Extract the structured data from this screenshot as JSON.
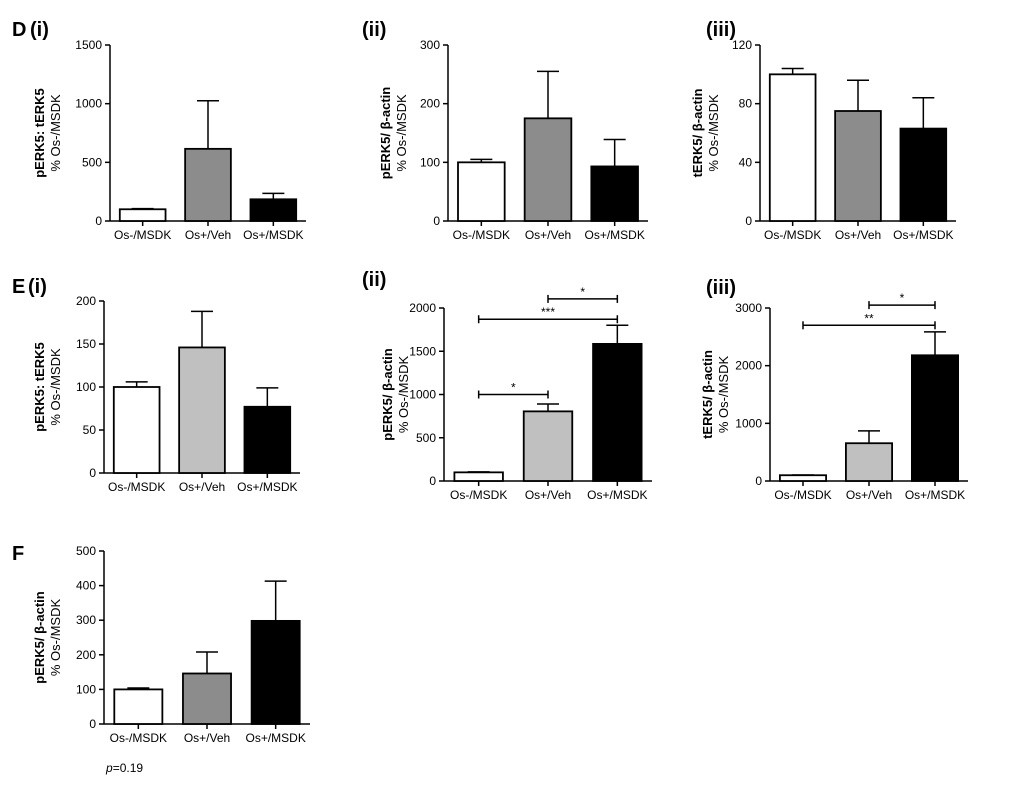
{
  "colors": {
    "white": "#ffffff",
    "gray": "#8c8c8c",
    "lightgray": "#c0c0c0",
    "black": "#000000",
    "axis": "#000000"
  },
  "chart_data": [
    {
      "id": "D-i",
      "label_main": "D",
      "label_sub": "(i)",
      "type": "bar",
      "ylabel_bold": "pERK5: tERK5",
      "ylabel_norm": "% Os-/MSDK",
      "ylim": [
        0,
        1500
      ],
      "yticks": [
        0,
        500,
        1000,
        1500
      ],
      "categories": [
        "Os-/MSDK",
        "Os+/Veh",
        "Os+/MSDK"
      ],
      "values": [
        100,
        615,
        185
      ],
      "errors": [
        5,
        410,
        50
      ],
      "fill_colors": [
        "white",
        "gray",
        "black"
      ],
      "significance": []
    },
    {
      "id": "D-ii",
      "label_main": "",
      "label_sub": "(ii)",
      "type": "bar",
      "ylabel_bold": "pERK5/ β-actin",
      "ylabel_norm": "% Os-/MSDK",
      "ylim": [
        0,
        300
      ],
      "yticks": [
        0,
        100,
        200,
        300
      ],
      "categories": [
        "Os-/MSDK",
        "Os+/Veh",
        "Os+/MSDK"
      ],
      "values": [
        100,
        175,
        93
      ],
      "errors": [
        5,
        80,
        46
      ],
      "fill_colors": [
        "white",
        "gray",
        "black"
      ],
      "significance": []
    },
    {
      "id": "D-iii",
      "label_main": "",
      "label_sub": "(iii)",
      "type": "bar",
      "ylabel_bold": "tERK5/ β-actin",
      "ylabel_norm": "% Os-/MSDK",
      "ylim": [
        0,
        120
      ],
      "yticks": [
        0,
        40,
        80,
        120
      ],
      "categories": [
        "Os-/MSDK",
        "Os+/Veh",
        "Os+/MSDK"
      ],
      "values": [
        100,
        75,
        63
      ],
      "errors": [
        4,
        21,
        21
      ],
      "fill_colors": [
        "white",
        "gray",
        "black"
      ],
      "significance": []
    },
    {
      "id": "E-i",
      "label_main": "E",
      "label_sub": "(i)",
      "type": "bar",
      "ylabel_bold": "pERK5: tERK5",
      "ylabel_norm": "% Os-/MSDK",
      "ylim": [
        0,
        200
      ],
      "yticks": [
        0,
        50,
        100,
        150,
        200
      ],
      "categories": [
        "Os-/MSDK",
        "Os+/Veh",
        "Os+/MSDK"
      ],
      "values": [
        100,
        146,
        77
      ],
      "errors": [
        6,
        42,
        22
      ],
      "fill_colors": [
        "white",
        "lightgray",
        "black"
      ],
      "significance": []
    },
    {
      "id": "E-ii",
      "label_main": "",
      "label_sub": "(ii)",
      "type": "bar",
      "ylabel_bold": "pERK5/ β-actin",
      "ylabel_norm": "% Os-/MSDK",
      "ylim": [
        0,
        2000
      ],
      "yticks": [
        0,
        500,
        1000,
        1500,
        2000
      ],
      "categories": [
        "Os-/MSDK",
        "Os+/Veh",
        "Os+/MSDK"
      ],
      "values": [
        100,
        805,
        1585
      ],
      "errors": [
        5,
        85,
        215
      ],
      "fill_colors": [
        "white",
        "lightgray",
        "black"
      ],
      "significance": [
        {
          "from": 0,
          "to": 1,
          "level": 1000,
          "label": "*"
        },
        {
          "from": 0,
          "to": 2,
          "level": 1870,
          "label": "***"
        },
        {
          "from": 1,
          "to": 2,
          "level": 2105,
          "label": "*"
        }
      ]
    },
    {
      "id": "E-iii",
      "label_main": "",
      "label_sub": "(iii)",
      "type": "bar",
      "ylabel_bold": "tERK5/ β-actin",
      "ylabel_norm": "% Os-/MSDK",
      "ylim": [
        0,
        3000
      ],
      "yticks": [
        0,
        1000,
        2000,
        3000
      ],
      "categories": [
        "Os-/MSDK",
        "Os+/Veh",
        "Os+/MSDK"
      ],
      "values": [
        100,
        655,
        2180
      ],
      "errors": [
        5,
        215,
        405
      ],
      "fill_colors": [
        "white",
        "lightgray",
        "black"
      ],
      "significance": [
        {
          "from": 0,
          "to": 2,
          "level": 2700,
          "label": "**"
        },
        {
          "from": 1,
          "to": 2,
          "level": 3050,
          "label": "*"
        }
      ]
    },
    {
      "id": "F",
      "label_main": "F",
      "label_sub": "",
      "type": "bar",
      "ylabel_bold": "pERK5/ β-actin",
      "ylabel_norm": "% Os-/MSDK",
      "ylim": [
        0,
        500
      ],
      "yticks": [
        0,
        100,
        200,
        300,
        400,
        500
      ],
      "categories": [
        "Os-/MSDK",
        "Os+/Veh",
        "Os+/MSDK"
      ],
      "values": [
        100,
        146,
        298
      ],
      "errors": [
        4,
        62,
        115
      ],
      "fill_colors": [
        "white",
        "gray",
        "black"
      ],
      "significance": [],
      "note_italic": "p",
      "note_rest": "=0.19"
    }
  ]
}
